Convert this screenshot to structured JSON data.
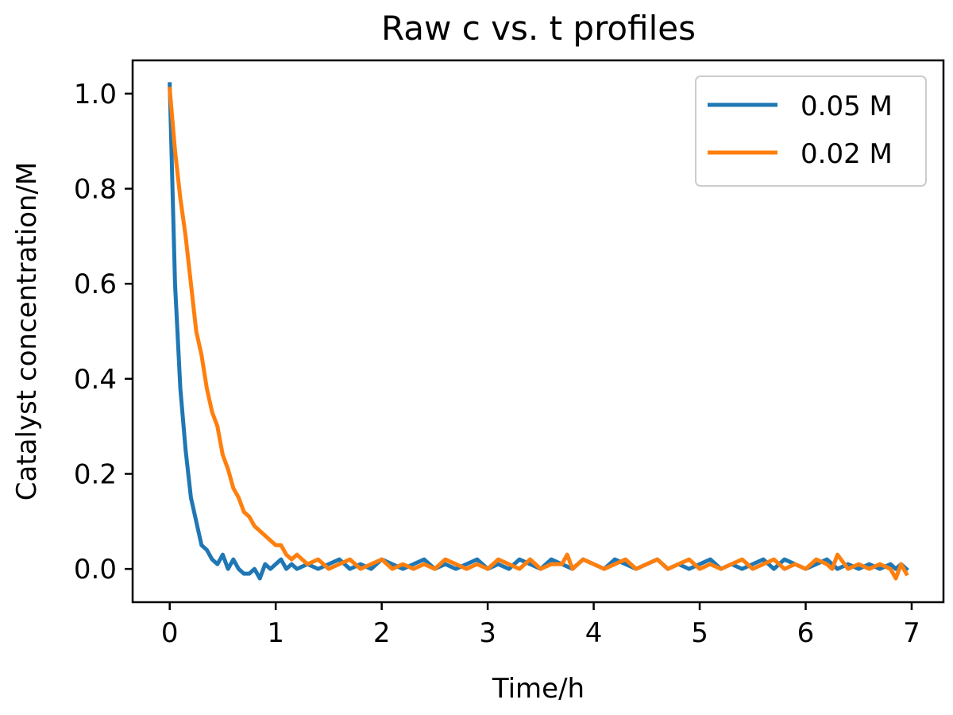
{
  "chart_data": {
    "type": "line",
    "title": "Raw c vs. t profiles",
    "xlabel": "Time/h",
    "ylabel": "Catalyst concentration/M",
    "xlim": [
      -0.35,
      7.3
    ],
    "ylim": [
      -0.07,
      1.07
    ],
    "xticks": [
      0,
      1,
      2,
      3,
      4,
      5,
      6,
      7
    ],
    "xtick_labels": [
      "0",
      "1",
      "2",
      "3",
      "4",
      "5",
      "6",
      "7"
    ],
    "yticks": [
      0.0,
      0.2,
      0.4,
      0.6,
      0.8,
      1.0
    ],
    "ytick_labels": [
      "0.0",
      "0.2",
      "0.4",
      "0.6",
      "0.8",
      "1.0"
    ],
    "grid": false,
    "legend_position": "top-right",
    "series": [
      {
        "name": "0.05 M",
        "color": "#1f77b4",
        "x": [
          0.0,
          0.05,
          0.1,
          0.15,
          0.2,
          0.25,
          0.3,
          0.35,
          0.4,
          0.45,
          0.5,
          0.55,
          0.6,
          0.65,
          0.7,
          0.75,
          0.8,
          0.85,
          0.9,
          0.95,
          1.0,
          1.05,
          1.1,
          1.15,
          1.2,
          1.3,
          1.4,
          1.5,
          1.6,
          1.7,
          1.8,
          1.9,
          2.0,
          2.1,
          2.2,
          2.3,
          2.4,
          2.5,
          2.6,
          2.7,
          2.8,
          2.9,
          3.0,
          3.1,
          3.2,
          3.3,
          3.4,
          3.5,
          3.6,
          3.7,
          3.8,
          3.9,
          4.0,
          4.1,
          4.2,
          4.3,
          4.4,
          4.5,
          4.6,
          4.7,
          4.8,
          4.9,
          5.0,
          5.1,
          5.2,
          5.3,
          5.4,
          5.5,
          5.6,
          5.7,
          5.8,
          5.9,
          6.0,
          6.1,
          6.2,
          6.3,
          6.4,
          6.5,
          6.6,
          6.7,
          6.8,
          6.85,
          6.9,
          6.95
        ],
        "y": [
          1.02,
          0.6,
          0.38,
          0.25,
          0.15,
          0.1,
          0.05,
          0.04,
          0.02,
          0.01,
          0.03,
          0.0,
          0.02,
          0.0,
          -0.01,
          -0.01,
          0.0,
          -0.02,
          0.01,
          0.0,
          0.01,
          0.02,
          0.0,
          0.01,
          0.0,
          0.01,
          0.0,
          0.01,
          0.02,
          0.0,
          0.01,
          0.0,
          0.02,
          0.01,
          0.0,
          0.01,
          0.02,
          0.0,
          0.01,
          0.0,
          0.01,
          0.02,
          0.0,
          0.01,
          0.0,
          0.02,
          0.01,
          0.0,
          0.02,
          0.01,
          0.0,
          0.02,
          0.01,
          0.0,
          0.02,
          0.01,
          0.0,
          0.01,
          0.02,
          0.0,
          0.01,
          0.0,
          0.01,
          0.02,
          0.0,
          0.01,
          0.0,
          0.01,
          0.02,
          0.0,
          0.02,
          0.01,
          0.0,
          0.01,
          0.02,
          0.0,
          0.01,
          0.0,
          0.01,
          0.0,
          0.01,
          0.0,
          0.01,
          0.0
        ]
      },
      {
        "name": "0.02 M",
        "color": "#ff7f0e",
        "x": [
          0.0,
          0.05,
          0.1,
          0.15,
          0.2,
          0.25,
          0.3,
          0.35,
          0.4,
          0.45,
          0.5,
          0.55,
          0.6,
          0.65,
          0.7,
          0.75,
          0.8,
          0.85,
          0.9,
          0.95,
          1.0,
          1.05,
          1.1,
          1.15,
          1.2,
          1.3,
          1.4,
          1.5,
          1.6,
          1.7,
          1.8,
          1.9,
          2.0,
          2.1,
          2.2,
          2.3,
          2.4,
          2.5,
          2.6,
          2.7,
          2.8,
          2.9,
          3.0,
          3.1,
          3.2,
          3.3,
          3.4,
          3.5,
          3.6,
          3.7,
          3.75,
          3.8,
          3.9,
          4.0,
          4.1,
          4.2,
          4.3,
          4.4,
          4.5,
          4.6,
          4.7,
          4.8,
          4.9,
          5.0,
          5.1,
          5.2,
          5.3,
          5.4,
          5.5,
          5.6,
          5.7,
          5.8,
          5.9,
          6.0,
          6.1,
          6.2,
          6.25,
          6.3,
          6.4,
          6.5,
          6.6,
          6.7,
          6.8,
          6.85,
          6.9,
          6.95
        ],
        "y": [
          1.01,
          0.88,
          0.78,
          0.7,
          0.6,
          0.5,
          0.45,
          0.38,
          0.33,
          0.3,
          0.24,
          0.21,
          0.17,
          0.15,
          0.12,
          0.11,
          0.09,
          0.08,
          0.07,
          0.06,
          0.05,
          0.05,
          0.03,
          0.02,
          0.03,
          0.01,
          0.02,
          0.0,
          0.01,
          0.02,
          0.0,
          0.01,
          0.02,
          0.0,
          0.01,
          0.0,
          0.01,
          0.0,
          0.02,
          0.01,
          0.0,
          0.01,
          0.0,
          0.02,
          0.01,
          0.0,
          0.02,
          0.0,
          0.01,
          0.01,
          0.03,
          0.0,
          0.02,
          0.01,
          0.0,
          0.01,
          0.02,
          0.0,
          0.01,
          0.02,
          0.0,
          0.01,
          0.02,
          0.0,
          0.01,
          0.0,
          0.01,
          0.02,
          0.0,
          0.01,
          0.02,
          0.0,
          0.01,
          0.0,
          0.02,
          0.01,
          0.0,
          0.03,
          0.0,
          0.01,
          0.0,
          0.01,
          0.0,
          -0.02,
          0.01,
          -0.01
        ]
      }
    ]
  }
}
